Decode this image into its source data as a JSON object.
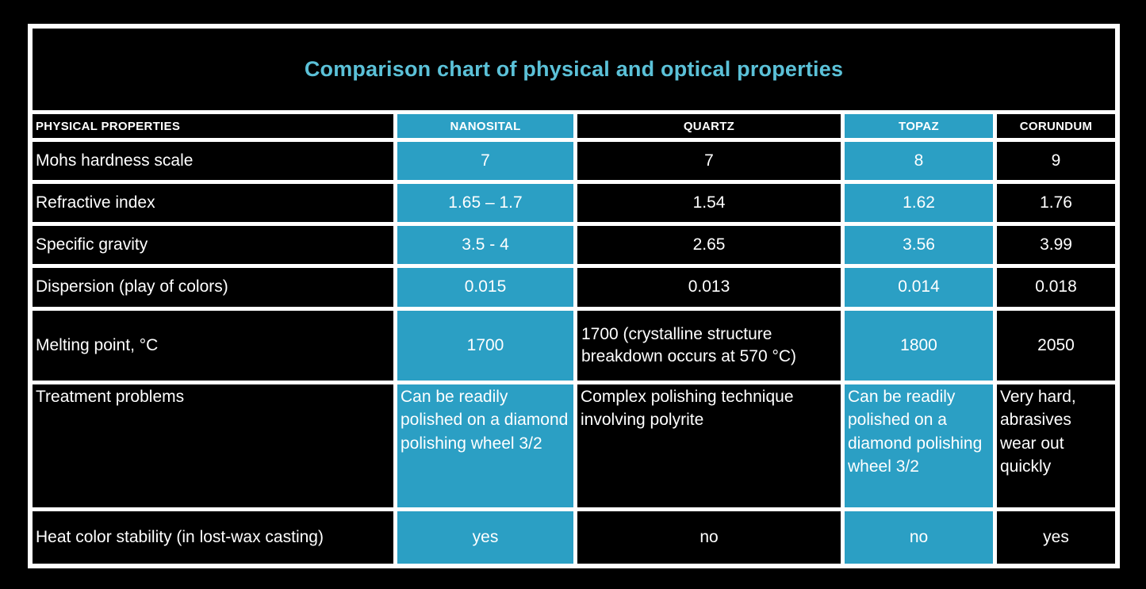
{
  "title": "Comparison chart of physical and optical properties",
  "colors": {
    "background": "#000000",
    "grid": "#ffffff",
    "text": "#ffffff",
    "accent_teal": "#2b9fc4",
    "title_cyan": "#5bc1d8"
  },
  "chart_data": {
    "type": "table",
    "title": "Comparison chart of physical and optical properties",
    "columns": [
      {
        "label": "PHYSICAL PROPERTIES",
        "highlight": false
      },
      {
        "label": "NANOSITAL",
        "highlight": true
      },
      {
        "label": "QUARTZ",
        "highlight": false
      },
      {
        "label": "TOPAZ",
        "highlight": true
      },
      {
        "label": "CORUNDUM",
        "highlight": false
      }
    ],
    "rows": [
      {
        "property": "Mohs hardness scale",
        "values": [
          "7",
          "7",
          "8",
          "9"
        ]
      },
      {
        "property": "Refractive index",
        "values": [
          "1.65 – 1.7",
          "1.54",
          "1.62",
          "1.76"
        ]
      },
      {
        "property": "Specific gravity",
        "values": [
          "3.5 - 4",
          "2.65",
          "3.56",
          "3.99"
        ]
      },
      {
        "property": "Dispersion (play of colors)",
        "values": [
          "0.015",
          "0.013",
          "0.014",
          "0.018"
        ]
      },
      {
        "property": "Melting point, °C",
        "values": [
          "1700",
          "1700 (crystalline structure breakdown occurs at 570 °C)",
          "1800",
          "2050"
        ]
      },
      {
        "property": "Treatment problems",
        "values": [
          "Can be readily polished on a diamond polishing wheel 3/2",
          "Complex polishing technique involving polyrite",
          "Can be readily polished on a diamond polishing wheel 3/2",
          "Very hard, abrasives wear out quickly"
        ]
      },
      {
        "property": "Heat color stability (in lost-wax casting)",
        "values": [
          "yes",
          "no",
          "no",
          "yes"
        ]
      }
    ]
  }
}
